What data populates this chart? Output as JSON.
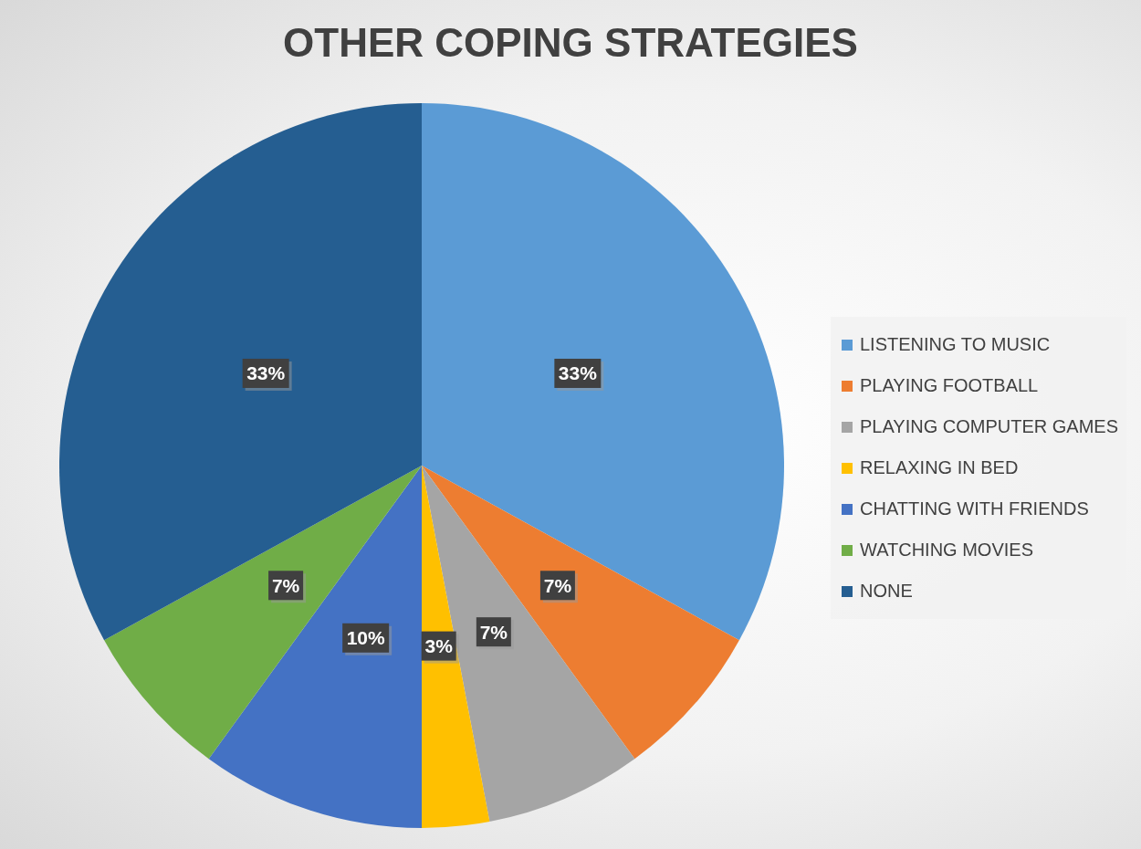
{
  "chart_data": {
    "type": "pie",
    "title": "OTHER COPING STRATEGIES",
    "categories": [
      "LISTENING TO MUSIC",
      "PLAYING FOOTBALL",
      "PLAYING COMPUTER GAMES",
      "RELAXING IN BED",
      "CHATTING WITH FRIENDS",
      "WATCHING MOVIES",
      "NONE"
    ],
    "values": [
      33,
      7,
      7,
      3,
      10,
      7,
      33
    ],
    "colors": [
      "#5b9bd5",
      "#ed7d31",
      "#a5a5a5",
      "#ffc000",
      "#4472c4",
      "#70ad47",
      "#255e91"
    ],
    "value_labels": [
      "33%",
      "7%",
      "7%",
      "3%",
      "10%",
      "7%",
      "33%"
    ],
    "legend": "right"
  }
}
